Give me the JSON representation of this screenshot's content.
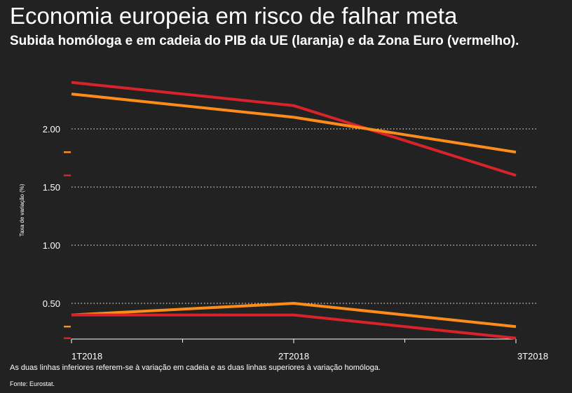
{
  "header": {
    "title": "Economia europeia em risco de falhar meta",
    "subtitle": "Subida homóloga e em cadeia do PIB da UE (laranja) e da Zona Euro (vermelho)."
  },
  "footer": {
    "note": "As duas linhas inferiores referem-se à variação em cadeia e as duas linhas superiores à variação homóloga.",
    "source": "Fonte: Eurostat."
  },
  "colors": {
    "background": "#222222",
    "eu": "#ff8c1a",
    "eurozone": "#d8232a",
    "grid": "#ffffff"
  },
  "chart_data": {
    "type": "line",
    "categories": [
      "1T2018",
      "2T2018",
      "3T2018"
    ],
    "ylabel": "Taxa de variação (%)",
    "ylim": [
      0.2,
      2.45
    ],
    "yticks": [
      0.5,
      1.0,
      1.5,
      2.0
    ],
    "ytick_labels": [
      "0.50",
      "1.00",
      "1.50",
      "2.00"
    ],
    "grid": true,
    "series": [
      {
        "group": "homologa",
        "color": "#d8232a",
        "values": [
          2.4,
          2.2,
          1.6
        ]
      },
      {
        "group": "homologa",
        "color": "#ff8c1a",
        "values": [
          2.3,
          2.1,
          1.8
        ]
      },
      {
        "group": "cadeia",
        "color": "#ff8c1a",
        "values": [
          0.4,
          0.5,
          0.3
        ]
      },
      {
        "group": "cadeia",
        "color": "#d8232a",
        "values": [
          0.4,
          0.4,
          0.2
        ]
      }
    ],
    "axis_markers": [
      {
        "color": "#ff8c1a",
        "value": 1.8
      },
      {
        "color": "#d8232a",
        "value": 1.6
      },
      {
        "color": "#ff8c1a",
        "value": 0.3
      },
      {
        "color": "#d8232a",
        "value": 0.2
      }
    ]
  }
}
